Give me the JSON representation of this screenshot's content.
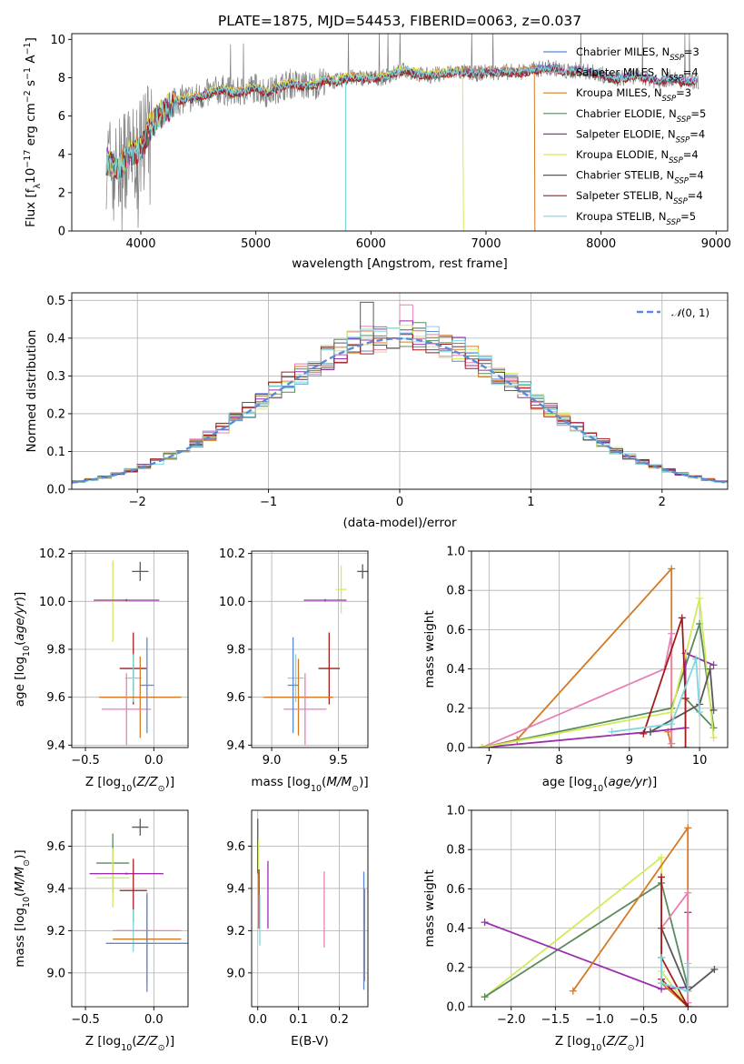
{
  "figure": {
    "title": "PLATE=1875, MJD=54453, FIBERID=0063, z=0.037"
  },
  "chart_data": [
    {
      "id": "spectrum",
      "type": "line",
      "xlabel": "wavelength [Angstrom, rest frame]",
      "ylabel": "Flux [fλ10⁻¹⁷ erg cm⁻² s⁻¹ A⁻¹]",
      "xlim": [
        3400,
        9100
      ],
      "ylim": [
        0,
        10.3
      ],
      "xticks": [
        4000,
        5000,
        6000,
        7000,
        8000,
        9000
      ],
      "yticks": [
        0,
        2,
        4,
        6,
        8,
        10
      ],
      "grid": false,
      "legend_position": "right",
      "data_x": [
        3700,
        3800,
        3900,
        4000,
        4100,
        4200,
        4300,
        4400,
        4500,
        4600,
        4700,
        4800,
        4900,
        5000,
        5100,
        5200,
        5300,
        5400,
        5500,
        5600,
        5700,
        5800,
        5900,
        6000,
        6100,
        6200,
        6300,
        6400,
        6500,
        6600,
        6700,
        6800,
        6900,
        7000,
        7100,
        7200,
        7300,
        7400,
        7500,
        7600,
        7700,
        7800,
        7900,
        8000,
        8100,
        8200,
        8300,
        8400,
        8500,
        8600,
        8700,
        8800
      ],
      "data_y": [
        3.7,
        3.2,
        4.0,
        4.3,
        5.6,
        6.2,
        6.8,
        6.9,
        7.0,
        7.2,
        7.4,
        7.2,
        7.3,
        7.5,
        7.2,
        7.5,
        7.7,
        7.6,
        7.6,
        7.9,
        7.8,
        8.0,
        8.0,
        8.0,
        8.0,
        8.2,
        8.4,
        8.2,
        8.1,
        8.2,
        8.3,
        8.3,
        8.2,
        8.3,
        8.3,
        8.3,
        8.3,
        8.4,
        8.5,
        8.5,
        8.3,
        8.4,
        8.3,
        8.2,
        7.9,
        8.0,
        8.1,
        8.0,
        7.8,
        8.0,
        7.8,
        7.8
      ],
      "series": [
        {
          "name": "Chabrier MILES, N$_{SSP}$=3",
          "label": "Chabrier MILES, N",
          "sub": "SSP",
          "tail": "=3",
          "color": "#5b8bd6",
          "offset": 0.05
        },
        {
          "name": "Salpeter MILES, N$_{SSP}$=4",
          "label": "Salpeter MILES, N",
          "sub": "SSP",
          "tail": "=4",
          "color": "#e87fb6",
          "offset": -0.05
        },
        {
          "name": "Kroupa MILES, N$_{SSP}$=3",
          "label": "Kroupa MILES, N",
          "sub": "SSP",
          "tail": "=3",
          "color": "#d57a24",
          "offset": 0.1,
          "start": 3700,
          "end": 7420
        },
        {
          "name": "Chabrier ELODIE, N$_{SSP}$=5",
          "label": "Chabrier ELODIE, N",
          "sub": "SSP",
          "tail": "=5",
          "color": "#5a8a5e",
          "offset": -0.08
        },
        {
          "name": "Salpeter ELODIE, N$_{SSP}$=4",
          "label": "Salpeter ELODIE, N",
          "sub": "SSP",
          "tail": "=4",
          "color": "#9b2fae",
          "offset": 0.02
        },
        {
          "name": "Kroupa ELODIE, N$_{SSP}$=4",
          "label": "Kroupa ELODIE, N",
          "sub": "SSP",
          "tail": "=4",
          "color": "#d4ea5a",
          "offset": 0.12,
          "start": 3700,
          "end": 6800
        },
        {
          "name": "Chabrier STELIB, N$_{SSP}$=4",
          "label": "Chabrier STELIB, N",
          "sub": "SSP",
          "tail": "=4",
          "color": "#595959",
          "offset": -0.02
        },
        {
          "name": "Salpeter STELIB, N$_{SSP}$=4",
          "label": "Salpeter STELIB, N",
          "sub": "SSP",
          "tail": "=4",
          "color": "#a31c1c",
          "offset": -0.1
        },
        {
          "name": "Kroupa STELIB, N$_{SSP}$=5",
          "label": "Kroupa STELIB, N",
          "sub": "SSP",
          "tail": "=5",
          "color": "#7fd6dc",
          "offset": 0.0
        }
      ],
      "observed_color": "#808080"
    },
    {
      "id": "residuals",
      "type": "histogram",
      "xlabel": "(data-model)/error",
      "ylabel": "Normed distribution",
      "xlim": [
        -2.5,
        2.5
      ],
      "ylim": [
        0,
        0.52
      ],
      "xticks": [
        -2,
        -1,
        0,
        1,
        2
      ],
      "yticks": [
        0.0,
        0.1,
        0.2,
        0.3,
        0.4,
        0.5
      ],
      "grid": true,
      "legend": "$\\mathcal{N}(0,1)$",
      "legend_position": "top-right",
      "legend_curve_color": "#5b8bd6"
    },
    {
      "id": "age-vs-z",
      "type": "errorbar",
      "xlabel": "Z [log10(Z/Zsun)]",
      "ylabel": "age [log10(age/yr)]",
      "xlim": [
        -0.6,
        0.25
      ],
      "ylim": [
        9.39,
        10.21
      ],
      "xticks": [
        -0.5,
        0.0
      ],
      "yticks": [
        9.4,
        9.6,
        9.8,
        10.0,
        10.2
      ],
      "grid": true,
      "points": [
        {
          "x": -0.1,
          "y": 10.125,
          "xerr": 0.06,
          "yerr": 0.04,
          "color": "#595959"
        },
        {
          "x": -0.3,
          "y": 10.0,
          "xerr": 0.12,
          "yerr": 0.17,
          "color": "#d4ea5a"
        },
        {
          "x": -0.2,
          "y": 10.005,
          "xerr": 0.24,
          "yerr": 0.005,
          "color": "#9b2fae"
        },
        {
          "x": -0.15,
          "y": 9.72,
          "xerr": 0.1,
          "yerr": 0.15,
          "color": "#a31c1c"
        },
        {
          "x": -0.15,
          "y": 9.68,
          "xerr": 0.06,
          "yerr": 0.1,
          "color": "#7fd6dc"
        },
        {
          "x": -0.1,
          "y": 9.6,
          "xerr": 0.3,
          "yerr": 0.17,
          "color": "#d57a24"
        },
        {
          "x": -0.2,
          "y": 9.55,
          "xerr": 0.18,
          "yerr": 0.15,
          "color": "#e87fb6"
        },
        {
          "x": -0.05,
          "y": 9.65,
          "xerr": 0.05,
          "yerr": 0.2,
          "color": "#5b8bd6"
        }
      ]
    },
    {
      "id": "age-vs-mass",
      "type": "errorbar",
      "xlabel": "mass [log10(M/Msun)]",
      "ylabel": "",
      "xlim": [
        8.85,
        9.72
      ],
      "ylim": [
        9.39,
        10.21
      ],
      "xticks": [
        9.0,
        9.5
      ],
      "yticks": [
        9.4,
        9.6,
        9.8,
        10.0,
        10.2
      ],
      "grid": true,
      "points": [
        {
          "x": 9.68,
          "y": 10.125,
          "xerr": 0.04,
          "yerr": 0.03,
          "color": "#595959"
        },
        {
          "x": 9.52,
          "y": 10.05,
          "xerr": 0.04,
          "yerr": 0.1,
          "color": "#d4ea5a"
        },
        {
          "x": 9.4,
          "y": 10.005,
          "xerr": 0.16,
          "yerr": 0.005,
          "color": "#9b2fae"
        },
        {
          "x": 9.43,
          "y": 9.72,
          "xerr": 0.08,
          "yerr": 0.15,
          "color": "#a31c1c"
        },
        {
          "x": 9.18,
          "y": 9.68,
          "xerr": 0.06,
          "yerr": 0.1,
          "color": "#7fd6dc"
        },
        {
          "x": 9.2,
          "y": 9.6,
          "xerr": 0.26,
          "yerr": 0.16,
          "color": "#d57a24"
        },
        {
          "x": 9.25,
          "y": 9.55,
          "xerr": 0.16,
          "yerr": 0.15,
          "color": "#e87fb6"
        },
        {
          "x": 9.16,
          "y": 9.65,
          "xerr": 0.04,
          "yerr": 0.2,
          "color": "#5b8bd6"
        }
      ]
    },
    {
      "id": "massweight-vs-age",
      "type": "line",
      "xlabel": "age [log10(age/yr)]",
      "ylabel": "mass weight",
      "xlim": [
        6.75,
        10.4
      ],
      "ylim": [
        0,
        1.0
      ],
      "xticks": [
        7,
        8,
        9,
        10
      ],
      "yticks": [
        0.0,
        0.2,
        0.4,
        0.6,
        0.8,
        1.0
      ],
      "grid": true,
      "series": [
        {
          "color": "#d57a24",
          "x": [
            6.9,
            7.4,
            9.6,
            9.6,
            9.55
          ],
          "y": [
            0.0,
            0.04,
            0.91,
            0.0,
            0.08
          ]
        },
        {
          "color": "#e87fb6",
          "x": [
            6.9,
            9.5,
            9.6,
            9.6
          ],
          "y": [
            0.0,
            0.4,
            0.58,
            0.02
          ]
        },
        {
          "color": "#5a8a5e",
          "x": [
            6.9,
            9.6,
            10.0,
            10.2,
            9.8
          ],
          "y": [
            0.0,
            0.2,
            0.63,
            0.1,
            0.25
          ]
        },
        {
          "color": "#9b2fae",
          "x": [
            6.9,
            9.3,
            9.8,
            9.8,
            10.2
          ],
          "y": [
            0.0,
            0.08,
            0.1,
            0.48,
            0.42
          ]
        },
        {
          "color": "#d4ea5a",
          "x": [
            6.9,
            9.6,
            10.0,
            10.2
          ],
          "y": [
            0.0,
            0.18,
            0.76,
            0.05
          ]
        },
        {
          "color": "#595959",
          "x": [
            9.3,
            10.0,
            10.15,
            10.2
          ],
          "y": [
            0.08,
            0.22,
            0.4,
            0.19
          ]
        },
        {
          "color": "#a31c1c",
          "x": [
            9.2,
            9.75,
            9.8,
            9.8
          ],
          "y": [
            0.07,
            0.66,
            0.25,
            0.0
          ]
        },
        {
          "color": "#7fd6dc",
          "x": [
            8.75,
            9.6,
            9.95,
            10.0
          ],
          "y": [
            0.08,
            0.12,
            0.45,
            0.18
          ]
        }
      ]
    },
    {
      "id": "mass-vs-z",
      "type": "errorbar",
      "xlabel": "Z [log10(Z/Zsun)]",
      "ylabel": "mass [log10(M/Msun)]",
      "xlim": [
        -0.6,
        0.25
      ],
      "ylim": [
        8.84,
        9.77
      ],
      "xticks": [
        -0.5,
        0.0
      ],
      "yticks": [
        9.0,
        9.2,
        9.4,
        9.6
      ],
      "grid": true,
      "points": [
        {
          "x": -0.1,
          "y": 9.69,
          "xerr": 0.06,
          "yerr": 0.04,
          "color": "#595959"
        },
        {
          "x": -0.3,
          "y": 9.52,
          "xerr": 0.12,
          "yerr": 0.14,
          "color": "#5a8a5e"
        },
        {
          "x": -0.3,
          "y": 9.45,
          "xerr": 0.12,
          "yerr": 0.14,
          "color": "#d4ea5a"
        },
        {
          "x": -0.2,
          "y": 9.47,
          "xerr": 0.27,
          "yerr": 0.005,
          "color": "#9b2fae"
        },
        {
          "x": -0.15,
          "y": 9.39,
          "xerr": 0.1,
          "yerr": 0.15,
          "color": "#a31c1c"
        },
        {
          "x": -0.15,
          "y": 9.2,
          "xerr": 0.12,
          "yerr": 0.1,
          "color": "#7fd6dc"
        },
        {
          "x": -0.05,
          "y": 9.2,
          "xerr": 0.25,
          "yerr": 0.05,
          "color": "#e87fb6"
        },
        {
          "x": -0.05,
          "y": 9.16,
          "xerr": 0.25,
          "yerr": 0.22,
          "color": "#d57a24"
        },
        {
          "x": -0.05,
          "y": 9.14,
          "xerr": 0.3,
          "yerr": 0.23,
          "color": "#5b8bd6"
        }
      ]
    },
    {
      "id": "mass-vs-ebv",
      "type": "errorbar",
      "xlabel": "E(B-V)",
      "ylabel": "",
      "xlim": [
        -0.015,
        0.27
      ],
      "ylim": [
        8.84,
        9.77
      ],
      "xticks": [
        0.0,
        0.1,
        0.2
      ],
      "yticks": [
        9.0,
        9.2,
        9.4,
        9.6
      ],
      "grid": true,
      "points": [
        {
          "x": 0.0,
          "y": 9.6,
          "xerr": 0,
          "yerr": 0.13,
          "color": "#595959"
        },
        {
          "x": 0.002,
          "y": 9.5,
          "xerr": 0,
          "yerr": 0.13,
          "color": "#d4ea5a"
        },
        {
          "x": 0.003,
          "y": 9.35,
          "xerr": 0,
          "yerr": 0.14,
          "color": "#a31c1c"
        },
        {
          "x": 0.005,
          "y": 9.25,
          "xerr": 0,
          "yerr": 0.12,
          "color": "#7fd6dc"
        },
        {
          "x": 0.025,
          "y": 9.37,
          "xerr": 0,
          "yerr": 0.16,
          "color": "#9b2fae"
        },
        {
          "x": 0.163,
          "y": 9.3,
          "xerr": 0,
          "yerr": 0.18,
          "color": "#e87fb6"
        },
        {
          "x": 0.26,
          "y": 9.2,
          "xerr": 0,
          "yerr": 0.28,
          "color": "#5b8bd6"
        },
        {
          "x": 0.262,
          "y": 9.18,
          "xerr": 0,
          "yerr": 0.22,
          "color": "#d57a24"
        }
      ]
    },
    {
      "id": "massweight-vs-z",
      "type": "line",
      "xlabel": "Z [log10(Z/Zsun)]",
      "ylabel": "mass weight",
      "xlim": [
        -2.45,
        0.45
      ],
      "ylim": [
        0,
        1.0
      ],
      "xticks": [
        -2.0,
        -1.5,
        -1.0,
        -0.5,
        0.0
      ],
      "yticks": [
        0.0,
        0.2,
        0.4,
        0.6,
        0.8,
        1.0
      ],
      "grid": true,
      "series": [
        {
          "color": "#d4ea5a",
          "x": [
            -2.3,
            -0.3,
            -0.3,
            0.0
          ],
          "y": [
            0.05,
            0.76,
            0.18,
            0.0
          ]
        },
        {
          "color": "#5a8a5e",
          "x": [
            -2.3,
            -0.3,
            0.0
          ],
          "y": [
            0.05,
            0.63,
            0.1
          ]
        },
        {
          "color": "#9b2fae",
          "x": [
            -2.3,
            -0.3,
            0.0,
            0.0
          ],
          "y": [
            0.43,
            0.09,
            0.1,
            0.48
          ]
        },
        {
          "color": "#d57a24",
          "x": [
            -1.3,
            0.0,
            0.0,
            -0.3
          ],
          "y": [
            0.08,
            0.91,
            0.0,
            0.12
          ]
        },
        {
          "color": "#e87fb6",
          "x": [
            -0.3,
            0.0,
            0.0
          ],
          "y": [
            0.4,
            0.58,
            0.02
          ]
        },
        {
          "color": "#595959",
          "x": [
            -0.3,
            0.0,
            0.3
          ],
          "y": [
            0.4,
            0.08,
            0.19
          ]
        },
        {
          "color": "#a31c1c",
          "x": [
            -0.3,
            -0.3,
            0.0,
            -0.3
          ],
          "y": [
            0.66,
            0.25,
            0.0,
            0.14
          ]
        },
        {
          "color": "#7fd6dc",
          "x": [
            -0.3,
            -0.3,
            0.0,
            0.0
          ],
          "y": [
            0.25,
            0.12,
            0.08,
            0.22
          ]
        }
      ]
    }
  ]
}
